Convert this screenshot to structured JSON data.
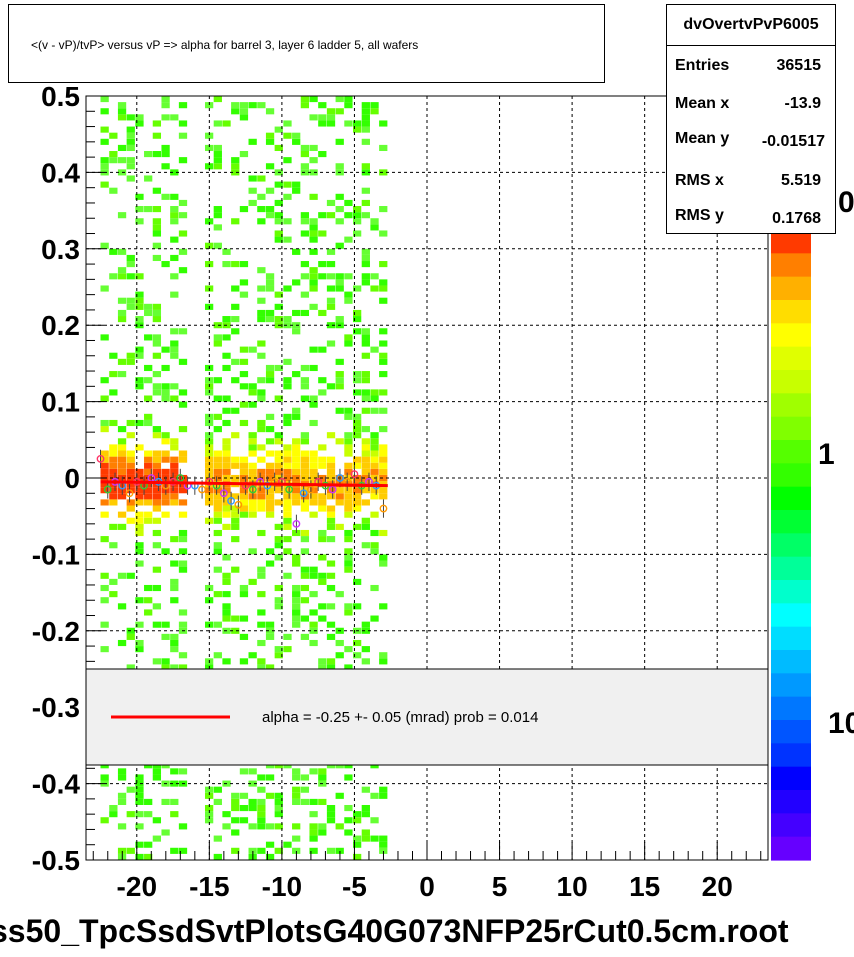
{
  "title": "<(v - vP)/tvP> versus   vP => alpha for barrel 3, layer 6 ladder 5, all wafers",
  "stats": {
    "name": "dvOvertvPvP6005",
    "rows": [
      {
        "label": "Entries",
        "value": "36515"
      },
      {
        "label": "Mean x",
        "value": "-13.9"
      },
      {
        "label": "Mean y",
        "value": "-0.01517"
      },
      {
        "label": "RMS x",
        "value": "5.519"
      },
      {
        "label": "RMS y",
        "value": "0.1768"
      }
    ]
  },
  "legend": {
    "text": "alpha =    -0.25 +-  0.05 (mrad) prob = 0.014",
    "line_color": "#ff0000"
  },
  "footer": "ss50_TpcSsdSvtPlotsG40G073NFP25rCut0.5cm.root",
  "palette_labels": [
    "0",
    "1",
    "10"
  ],
  "chart_data": {
    "type": "heatmap",
    "title": "<(v - vP)/tvP> versus   vP => alpha for barrel 3, layer 6 ladder 5, all wafers",
    "xlim": [
      -23.5,
      23.5
    ],
    "ylim": [
      -0.5,
      0.5
    ],
    "x_ticks": [
      -20,
      -15,
      -10,
      -5,
      0,
      5,
      10,
      15,
      20
    ],
    "y_ticks": [
      0.5,
      0.4,
      0.3,
      0.2,
      0.1,
      0,
      -0.1,
      -0.2,
      -0.3,
      -0.4,
      -0.5
    ],
    "y_tick_labels": [
      "0.5",
      "0.4",
      "0.3",
      "0.2",
      "0.1",
      "0",
      "-0.1",
      "-0.2",
      "-0.3",
      "-0.4",
      "-0.5"
    ],
    "grid": true,
    "populated_x_range": [
      -22.5,
      -3
    ],
    "profile": {
      "x": [
        -22.5,
        -22,
        -21.5,
        -21,
        -20.5,
        -20,
        -19.5,
        -19,
        -18.5,
        -18,
        -17.5,
        -17,
        -16.5,
        -16,
        -15.5,
        -15,
        -14.5,
        -14,
        -13.5,
        -13,
        -12.5,
        -12,
        -11.5,
        -11,
        -10.5,
        -10,
        -9.5,
        -9,
        -8.5,
        -8,
        -7.5,
        -7,
        -6.5,
        -6,
        -5.5,
        -5,
        -4.5,
        -4,
        -3.5,
        -3
      ],
      "y": [
        0.025,
        -0.015,
        -0.005,
        -0.01,
        -0.02,
        -0.005,
        -0.01,
        0.0,
        -0.005,
        -0.01,
        -0.005,
        0.0,
        -0.01,
        -0.01,
        -0.015,
        -0.005,
        -0.01,
        -0.02,
        -0.03,
        -0.035,
        -0.01,
        -0.015,
        -0.005,
        -0.01,
        -0.005,
        -0.005,
        -0.015,
        -0.06,
        -0.02,
        -0.015,
        -0.005,
        -0.01,
        -0.015,
        0.0,
        -0.005,
        0.005,
        -0.01,
        -0.005,
        -0.01,
        -0.04
      ]
    },
    "fit": {
      "x": [
        -22.5,
        -2.7
      ],
      "y": [
        -0.005,
        -0.01
      ],
      "color": "#ff0000"
    },
    "legend_position": "lower-center"
  }
}
